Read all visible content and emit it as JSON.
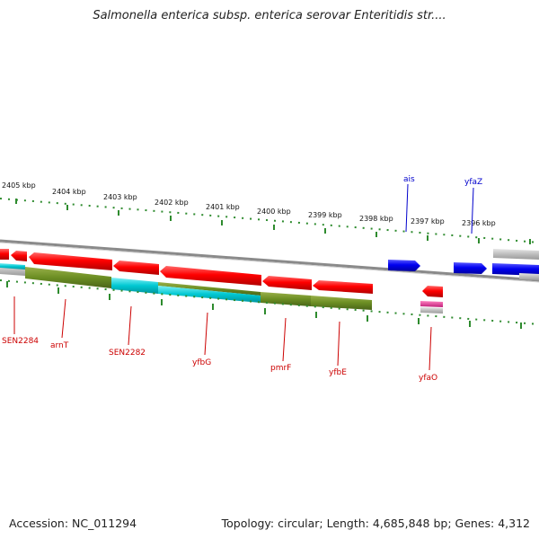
{
  "header": {
    "title": "Salmonella enterica subsp. enterica serovar Enteritidis str...."
  },
  "footer": {
    "accession": "Accession: NC_011294",
    "summary": "Topology: circular; Length: 4,685,848 bp; Genes: 4,312"
  },
  "ruler": {
    "labels": [
      "2405 kbp",
      "2404 kbp",
      "2403 kbp",
      "2402 kbp",
      "2401 kbp",
      "2400 kbp",
      "2399 kbp",
      "2398 kbp",
      "2397 kbp",
      "2396 kbp"
    ]
  },
  "genes": {
    "top": [
      {
        "label": "ais",
        "color": "#0000cc"
      },
      {
        "label": "yfaZ",
        "color": "#0000cc"
      }
    ],
    "bottom": [
      {
        "label": "SEN2284",
        "color": "#cc0000"
      },
      {
        "label": "arnT",
        "color": "#cc0000"
      },
      {
        "label": "SEN2282",
        "color": "#cc0000"
      },
      {
        "label": "yfbG",
        "color": "#cc0000"
      },
      {
        "label": "pmrF",
        "color": "#cc0000"
      },
      {
        "label": "yfbE",
        "color": "#cc0000"
      },
      {
        "label": "yfaO",
        "color": "#cc0000"
      }
    ]
  },
  "colors": {
    "forward_gene": "#0000ee",
    "reverse_gene": "#ee0000",
    "olive_feature": "#6b8e23",
    "cyan_feature": "#00c8d2",
    "backbone": "#888888",
    "tick": "#2e8b2e",
    "magenta_feature": "#e0409a",
    "gray_feature": "#c0c0c0"
  }
}
